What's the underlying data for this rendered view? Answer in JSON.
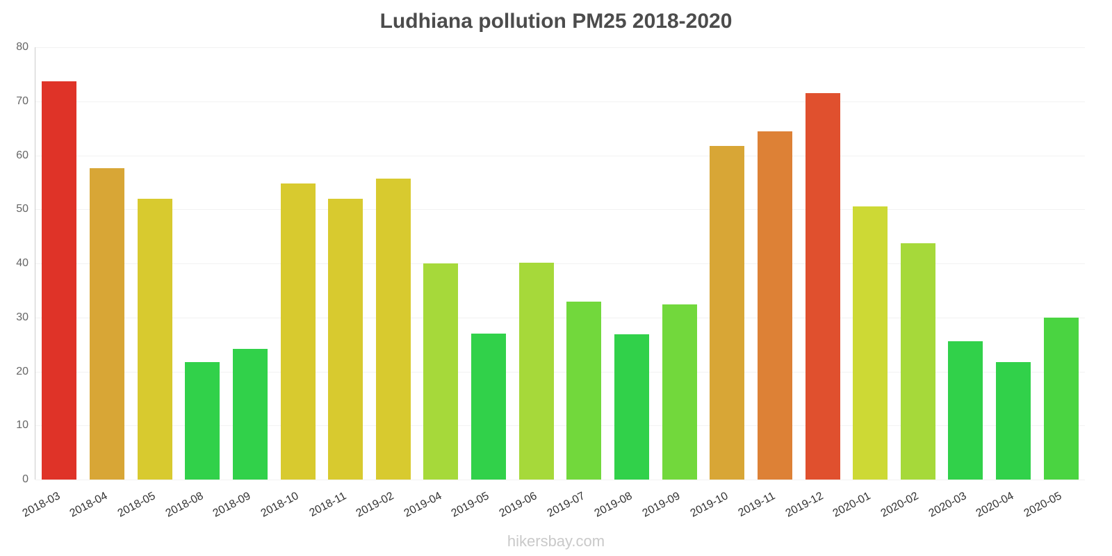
{
  "title": "Ludhiana pollution PM25 2018-2020",
  "footer": "hikersbay.com",
  "chart_data": {
    "type": "bar",
    "title": "Ludhiana pollution PM25 2018-2020",
    "categories": [
      "2018-03",
      "2018-04",
      "2018-05",
      "2018-08",
      "2018-09",
      "2018-10",
      "2018-11",
      "2019-02",
      "2019-04",
      "2019-05",
      "2019-06",
      "2019-07",
      "2019-08",
      "2019-09",
      "2019-10",
      "2019-11",
      "2019-12",
      "2020-01",
      "2020-02",
      "2020-03",
      "2020-04",
      "2020-05"
    ],
    "values": [
      73.7,
      57.6,
      51.9,
      21.7,
      24.2,
      54.8,
      51.9,
      55.7,
      40.0,
      27.0,
      40.1,
      32.9,
      26.9,
      32.4,
      61.8,
      64.4,
      71.5,
      50.5,
      43.7,
      25.6,
      21.7,
      30.0
    ],
    "colors": [
      "#df3328",
      "#d8a636",
      "#d8ca2f",
      "#31d14a",
      "#31d14a",
      "#d8ca2f",
      "#d8ca2f",
      "#d8ca2f",
      "#a6d93a",
      "#31d14a",
      "#a6d93a",
      "#72d83c",
      "#31d14a",
      "#72d83c",
      "#d8a636",
      "#dd8136",
      "#e0502e",
      "#cdd935",
      "#a6d93a",
      "#31d14a",
      "#31d14a",
      "#4ad441"
    ],
    "xlabel": "",
    "ylabel": "",
    "ylim": [
      0,
      80
    ],
    "yticks": [
      0,
      10,
      20,
      30,
      40,
      50,
      60,
      70,
      80
    ],
    "grid": true,
    "legend": "none"
  }
}
